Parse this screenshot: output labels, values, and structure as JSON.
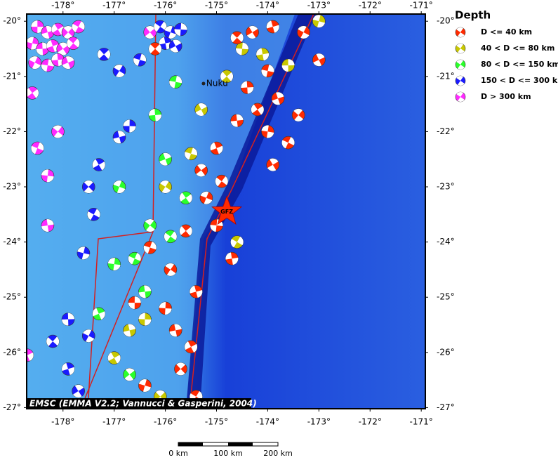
{
  "map": {
    "xlim": [
      -178.71,
      -170.92
    ],
    "ylim": [
      -27.02,
      -19.87
    ],
    "xticks": [
      {
        "value": -178,
        "label": "-178°"
      },
      {
        "value": -177,
        "label": "-177°"
      },
      {
        "value": -176,
        "label": "-176°"
      },
      {
        "value": -175,
        "label": "-175°"
      },
      {
        "value": -174,
        "label": "-174°"
      },
      {
        "value": -173,
        "label": "-173°"
      },
      {
        "value": -172,
        "label": "-172°"
      },
      {
        "value": -171,
        "label": "-171°"
      }
    ],
    "yticks": [
      {
        "value": -20,
        "label": "-20°"
      },
      {
        "value": -21,
        "label": "-21°"
      },
      {
        "value": -22,
        "label": "-22°"
      },
      {
        "value": -23,
        "label": "-23°"
      },
      {
        "value": -24,
        "label": "-24°"
      },
      {
        "value": -25,
        "label": "-25°"
      },
      {
        "value": -26,
        "label": "-26°"
      },
      {
        "value": -27,
        "label": "-27°"
      }
    ],
    "legend": {
      "title": "Depth",
      "items": [
        {
          "label": "D <= 40 km",
          "color": "#ff2a00"
        },
        {
          "label": "40 < D <= 80 km",
          "color": "#c8c800"
        },
        {
          "label": "80 < D <= 150 km",
          "color": "#2bff2b"
        },
        {
          "label": "150 < D <= 300 km",
          "color": "#1a1aff"
        },
        {
          "label": "D > 300 km",
          "color": "#ff2aff"
        }
      ]
    },
    "place": {
      "label": "Nuku",
      "lon": -175.2,
      "lat": -21.13
    },
    "epicenter": {
      "label": "GFZ",
      "lon": -174.8,
      "lat": -23.45
    },
    "attribution": "EMSC (EMMA V2.2; Vannucci & Gasperini, 2004)",
    "scale_labels": [
      "0 km",
      "100 km",
      "200 km"
    ],
    "events": [
      [
        -178.5,
        -20.1,
        4
      ],
      [
        -178.3,
        -20.2,
        4
      ],
      [
        -178.1,
        -20.15,
        4
      ],
      [
        -177.9,
        -20.2,
        4
      ],
      [
        -177.7,
        -20.1,
        4
      ],
      [
        -178.6,
        -20.4,
        4
      ],
      [
        -178.4,
        -20.5,
        4
      ],
      [
        -178.2,
        -20.45,
        4
      ],
      [
        -178.0,
        -20.5,
        4
      ],
      [
        -177.8,
        -20.4,
        4
      ],
      [
        -178.55,
        -20.75,
        4
      ],
      [
        -178.3,
        -20.8,
        4
      ],
      [
        -178.1,
        -20.7,
        4
      ],
      [
        -177.9,
        -20.75,
        4
      ],
      [
        -178.6,
        -21.3,
        4
      ],
      [
        -178.1,
        -22.0,
        4
      ],
      [
        -178.5,
        -22.3,
        4
      ],
      [
        -178.3,
        -22.8,
        4
      ],
      [
        -178.3,
        -23.7,
        4
      ],
      [
        -178.7,
        -26.05,
        4
      ],
      [
        -176.3,
        -20.2,
        4
      ],
      [
        -176.1,
        -20.1,
        3
      ],
      [
        -175.9,
        -20.2,
        3
      ],
      [
        -175.7,
        -20.15,
        3
      ],
      [
        -176.0,
        -20.4,
        3
      ],
      [
        -175.8,
        -20.45,
        3
      ],
      [
        -177.2,
        -20.6,
        3
      ],
      [
        -176.9,
        -20.9,
        3
      ],
      [
        -176.5,
        -20.7,
        3
      ],
      [
        -176.7,
        -21.9,
        3
      ],
      [
        -176.9,
        -22.1,
        3
      ],
      [
        -177.3,
        -22.6,
        3
      ],
      [
        -177.5,
        -23.0,
        3
      ],
      [
        -177.4,
        -23.5,
        3
      ],
      [
        -177.6,
        -24.2,
        3
      ],
      [
        -177.9,
        -25.4,
        3
      ],
      [
        -177.9,
        -26.3,
        3
      ],
      [
        -177.7,
        -26.7,
        3
      ],
      [
        -178.2,
        -25.8,
        3
      ],
      [
        -177.5,
        -25.7,
        3
      ],
      [
        -175.8,
        -21.1,
        2
      ],
      [
        -176.2,
        -21.7,
        2
      ],
      [
        -176.0,
        -22.5,
        2
      ],
      [
        -175.6,
        -23.2,
        2
      ],
      [
        -176.3,
        -23.7,
        2
      ],
      [
        -176.6,
        -24.3,
        2
      ],
      [
        -177.0,
        -24.4,
        2
      ],
      [
        -176.4,
        -24.9,
        2
      ],
      [
        -177.3,
        -25.3,
        2
      ],
      [
        -176.7,
        -26.4,
        2
      ],
      [
        -175.9,
        -23.9,
        2
      ],
      [
        -176.9,
        -23.0,
        2
      ],
      [
        -174.5,
        -20.5,
        1
      ],
      [
        -174.1,
        -20.6,
        1
      ],
      [
        -175.3,
        -21.6,
        1
      ],
      [
        -174.8,
        -21.0,
        1
      ],
      [
        -176.0,
        -23.0,
        1
      ],
      [
        -175.5,
        -22.4,
        1
      ],
      [
        -176.4,
        -25.4,
        1
      ],
      [
        -176.7,
        -25.6,
        1
      ],
      [
        -177.0,
        -26.1,
        1
      ],
      [
        -176.1,
        -26.8,
        1
      ],
      [
        -174.6,
        -24.0,
        1
      ],
      [
        -173.0,
        -20.0,
        1
      ],
      [
        -173.6,
        -20.8,
        1
      ],
      [
        -173.9,
        -20.1,
        0
      ],
      [
        -174.3,
        -20.2,
        0
      ],
      [
        -174.6,
        -20.3,
        0
      ],
      [
        -173.3,
        -20.2,
        0
      ],
      [
        -174.0,
        -20.9,
        0
      ],
      [
        -174.4,
        -21.2,
        0
      ],
      [
        -173.8,
        -21.4,
        0
      ],
      [
        -174.2,
        -21.6,
        0
      ],
      [
        -173.4,
        -21.7,
        0
      ],
      [
        -173.6,
        -22.2,
        0
      ],
      [
        -174.0,
        -22.0,
        0
      ],
      [
        -174.6,
        -21.8,
        0
      ],
      [
        -175.0,
        -22.3,
        0
      ],
      [
        -175.3,
        -22.7,
        0
      ],
      [
        -174.9,
        -22.9,
        0
      ],
      [
        -175.2,
        -23.2,
        0
      ],
      [
        -175.0,
        -23.7,
        0
      ],
      [
        -174.7,
        -24.3,
        0
      ],
      [
        -173.0,
        -20.7,
        0
      ],
      [
        -175.6,
        -23.8,
        0
      ],
      [
        -175.9,
        -24.5,
        0
      ],
      [
        -176.3,
        -24.1,
        0
      ],
      [
        -176.0,
        -25.2,
        0
      ],
      [
        -175.8,
        -25.6,
        0
      ],
      [
        -175.5,
        -25.9,
        0
      ],
      [
        -175.7,
        -26.3,
        0
      ],
      [
        -175.4,
        -26.8,
        0
      ],
      [
        -176.4,
        -26.6,
        0
      ],
      [
        -176.6,
        -25.1,
        0
      ],
      [
        -175.4,
        -24.9,
        0
      ],
      [
        -173.9,
        -22.6,
        0
      ],
      [
        -176.2,
        -20.5,
        0
      ]
    ]
  }
}
